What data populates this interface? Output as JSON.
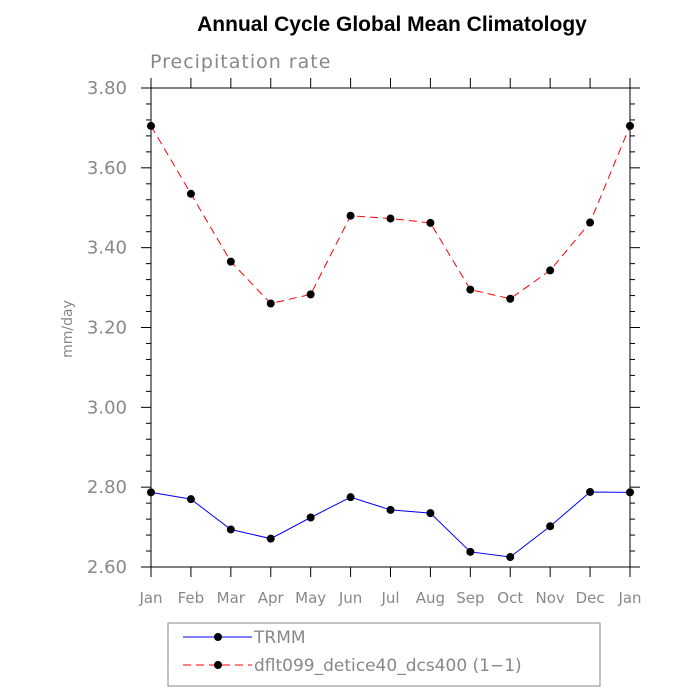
{
  "chart_data": {
    "type": "line",
    "title": "Annual Cycle Global Mean Climatology",
    "subtitle": "Precipitation rate",
    "ylabel": "mm/day",
    "xlabel": "",
    "categories": [
      "Jan",
      "Feb",
      "Mar",
      "Apr",
      "May",
      "Jun",
      "Jul",
      "Aug",
      "Sep",
      "Oct",
      "Nov",
      "Dec",
      "Jan"
    ],
    "ylim": [
      2.6,
      3.8
    ],
    "yticks": [
      "2.60",
      "2.80",
      "3.00",
      "3.20",
      "3.40",
      "3.60",
      "3.80"
    ],
    "grid": false,
    "legend_position": "bottom",
    "series": [
      {
        "name": "TRMM",
        "color": "#0000ff",
        "dash": "solid",
        "values": [
          2.787,
          2.77,
          2.694,
          2.671,
          2.724,
          2.775,
          2.743,
          2.735,
          2.638,
          2.625,
          2.702,
          2.788,
          2.787
        ]
      },
      {
        "name": "dflt099_detice40_dcs400 (1−1)",
        "color": "#ff0000",
        "dash": "dashed",
        "values": [
          3.705,
          3.535,
          3.365,
          3.26,
          3.283,
          3.48,
          3.473,
          3.462,
          3.295,
          3.272,
          3.343,
          3.463,
          3.705
        ]
      }
    ]
  }
}
